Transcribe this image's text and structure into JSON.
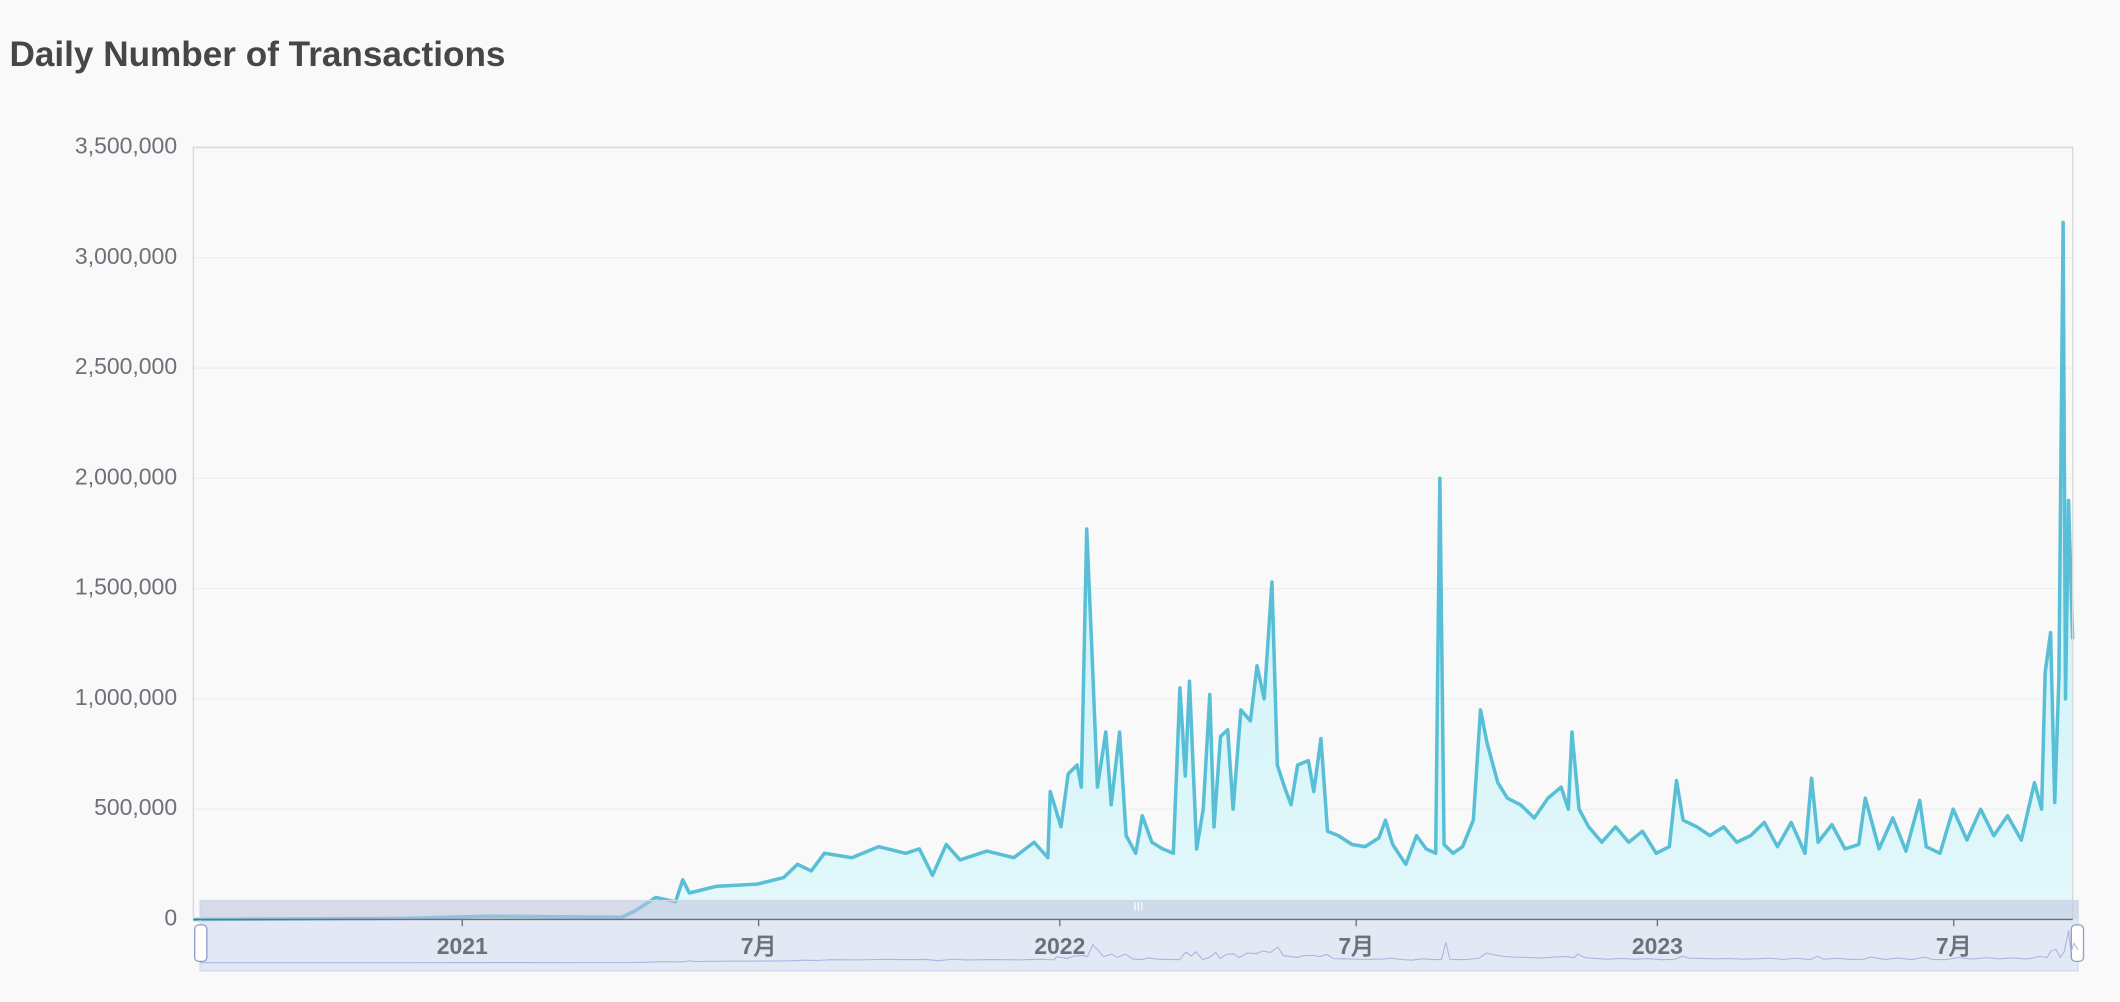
{
  "chart_data": {
    "type": "area",
    "title": "Daily Number of Transactions",
    "color": "#58bfd6",
    "fill_top": "#bdedf6",
    "fill_bottom": "#e3f8fb",
    "grid": true,
    "xlim": [
      2020.55,
      2023.695
    ],
    "xticks": [
      2021,
      {
        "value": 2021.496,
        "label": "7月"
      },
      2022,
      {
        "value": 2022.496,
        "label": "7月"
      },
      2023,
      {
        "value": 2023.496,
        "label": "7月"
      }
    ],
    "ylim": [
      0,
      3500000
    ],
    "yticks": [
      0,
      {
        "value": 500000,
        "label": "500,000"
      },
      {
        "value": 1000000,
        "label": "1,000,000"
      },
      {
        "value": 1500000,
        "label": "1,500,000"
      },
      {
        "value": 2000000,
        "label": "2,000,000"
      },
      {
        "value": 2500000,
        "label": "2,500,000"
      },
      {
        "value": 3000000,
        "label": "3,000,000"
      },
      {
        "value": 3500000,
        "label": "3,500,000"
      }
    ],
    "x": [
      2020.55,
      2020.905,
      2021.041,
      2021.267,
      2021.29,
      2021.324,
      2021.357,
      2021.369,
      2021.38,
      2021.425,
      2021.493,
      2021.538,
      2021.561,
      2021.584,
      2021.606,
      2021.652,
      2021.697,
      2021.742,
      2021.765,
      2021.787,
      2021.81,
      2021.833,
      2021.878,
      2021.923,
      2021.957,
      2021.98,
      2021.984,
      2022.002,
      2022.014,
      2022.029,
      2022.036,
      2022.045,
      2022.054,
      2022.063,
      2022.077,
      2022.086,
      2022.1,
      2022.111,
      2022.127,
      2022.138,
      2022.154,
      2022.172,
      2022.19,
      2022.201,
      2022.21,
      2022.217,
      2022.229,
      2022.24,
      2022.251,
      2022.258,
      2022.269,
      2022.281,
      2022.29,
      2022.303,
      2022.319,
      2022.33,
      2022.342,
      2022.355,
      2022.364,
      2022.376,
      2022.387,
      2022.398,
      2022.416,
      2022.425,
      2022.437,
      2022.448,
      2022.466,
      2022.489,
      2022.511,
      2022.534,
      2022.545,
      2022.557,
      2022.579,
      2022.597,
      2022.613,
      2022.629,
      2022.636,
      2022.643,
      2022.658,
      2022.674,
      2022.692,
      2022.704,
      2022.715,
      2022.733,
      2022.749,
      2022.771,
      2022.794,
      2022.817,
      2022.839,
      2022.851,
      2022.857,
      2022.869,
      2022.885,
      2022.907,
      2022.93,
      2022.952,
      2022.975,
      2022.998,
      2023.02,
      2023.032,
      2023.043,
      2023.066,
      2023.088,
      2023.111,
      2023.133,
      2023.156,
      2023.179,
      2023.201,
      2023.224,
      2023.247,
      2023.258,
      2023.269,
      2023.292,
      2023.314,
      2023.337,
      2023.348,
      2023.371,
      2023.394,
      2023.416,
      2023.439,
      2023.45,
      2023.473,
      2023.495,
      2023.518,
      2023.541,
      2023.563,
      2023.586,
      2023.609,
      2023.631,
      2023.643,
      2023.649,
      2023.658,
      2023.665,
      2023.672,
      2023.679,
      2023.683,
      2023.688,
      2023.695
    ],
    "values": [
      0,
      5000,
      15000,
      10000,
      40000,
      100000,
      80000,
      180000,
      120000,
      150000,
      160000,
      190000,
      250000,
      220000,
      300000,
      280000,
      330000,
      300000,
      320000,
      200000,
      340000,
      270000,
      310000,
      280000,
      350000,
      280000,
      580000,
      420000,
      660000,
      700000,
      600000,
      1770000,
      1200000,
      600000,
      850000,
      520000,
      850000,
      380000,
      300000,
      470000,
      350000,
      320000,
      300000,
      1050000,
      650000,
      1080000,
      320000,
      500000,
      1020000,
      420000,
      830000,
      860000,
      500000,
      950000,
      900000,
      1150000,
      1000000,
      1530000,
      700000,
      600000,
      520000,
      700000,
      720000,
      580000,
      820000,
      400000,
      380000,
      340000,
      330000,
      370000,
      450000,
      340000,
      250000,
      380000,
      320000,
      300000,
      2000000,
      340000,
      300000,
      330000,
      450000,
      950000,
      800000,
      620000,
      550000,
      520000,
      460000,
      550000,
      600000,
      500000,
      850000,
      500000,
      420000,
      350000,
      420000,
      350000,
      400000,
      300000,
      330000,
      630000,
      450000,
      420000,
      380000,
      420000,
      350000,
      380000,
      440000,
      330000,
      440000,
      300000,
      640000,
      350000,
      430000,
      320000,
      340000,
      550000,
      320000,
      460000,
      310000,
      540000,
      330000,
      300000,
      500000,
      360000,
      500000,
      380000,
      470000,
      360000,
      620000,
      500000,
      1120000,
      1300000,
      530000,
      1100000,
      3160000,
      1000000,
      1900000,
      1270000
    ]
  }
}
